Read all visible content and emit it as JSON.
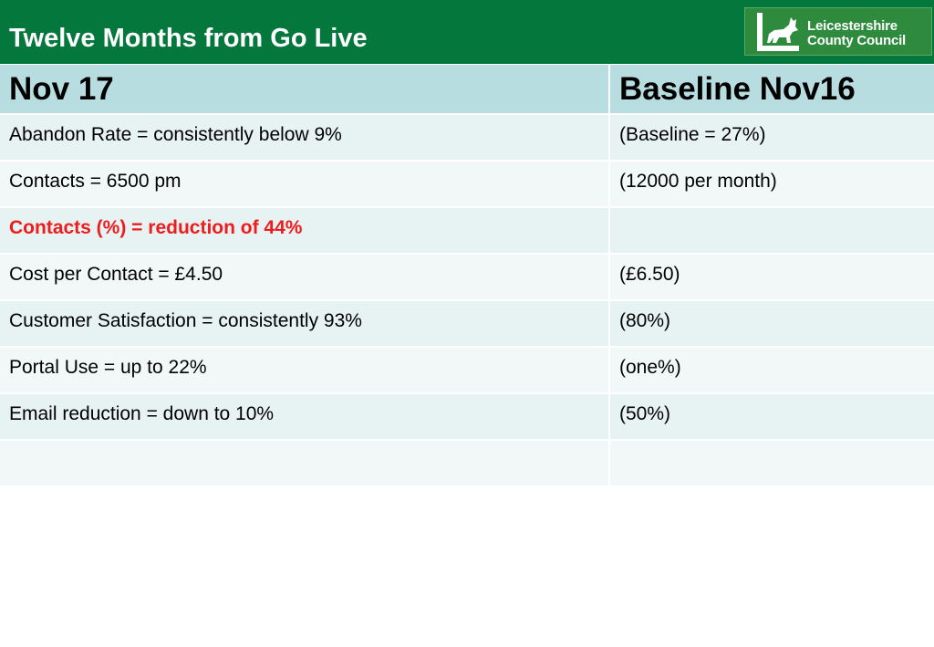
{
  "header": {
    "title": "Twelve Months from Go Live",
    "logo_line1": "Leicestershire",
    "logo_line2": "County Council"
  },
  "table": {
    "columns": [
      "Nov 17",
      "Baseline Nov16"
    ],
    "rows": [
      {
        "current": "Abandon Rate = consistently below 9%",
        "baseline": "(Baseline = 27%)"
      },
      {
        "current": "Contacts = 6500 pm",
        "baseline": "(12000 per month)"
      },
      {
        "current": "Contacts (%) = reduction of 44%",
        "baseline": ""
      },
      {
        "current": "Cost per Contact = £4.50",
        "baseline": "(£6.50)"
      },
      {
        "current": "Customer Satisfaction = consistently 93%",
        "baseline": "(80%)"
      },
      {
        "current": "Portal Use = up to 22%",
        "baseline": "(one%)"
      },
      {
        "current": "Email reduction = down to 10%",
        "baseline": "(50%)"
      },
      {
        "current": "",
        "baseline": ""
      }
    ]
  },
  "colors": {
    "header_green": "#04773c",
    "header_row": "#b7dde1",
    "highlight_red": "#ee1c1c"
  },
  "icons": {
    "logo": "fox-logo-icon"
  }
}
